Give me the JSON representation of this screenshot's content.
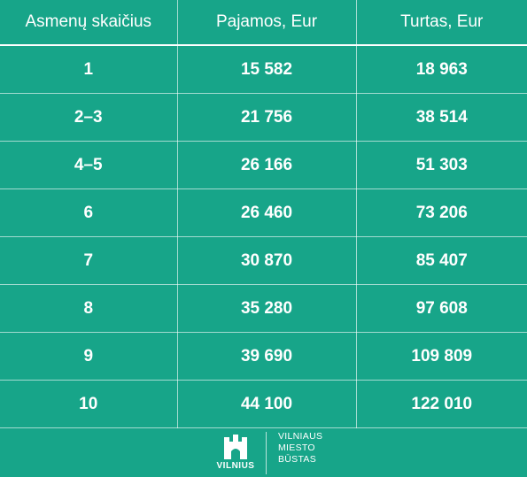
{
  "table": {
    "headers": [
      "Asmenų skaičius",
      "Pajamos, Eur",
      "Turtas, Eur"
    ],
    "rows": [
      [
        "1",
        "15 582",
        "18 963"
      ],
      [
        "2–3",
        "21 756",
        "38 514"
      ],
      [
        "4–5",
        "26 166",
        "51 303"
      ],
      [
        "6",
        "26 460",
        "73 206"
      ],
      [
        "7",
        "30 870",
        "85 407"
      ],
      [
        "8",
        "35 280",
        "97 608"
      ],
      [
        "9",
        "39 690",
        "109 809"
      ],
      [
        "10",
        "44 100",
        "122 010"
      ]
    ]
  },
  "footer": {
    "logo_word": "VILNIUS",
    "brand_lines": [
      "VILNIAUS",
      "MIESTO",
      "BŪSTAS"
    ]
  },
  "colors": {
    "background": "#17a589",
    "text": "#ffffff"
  }
}
